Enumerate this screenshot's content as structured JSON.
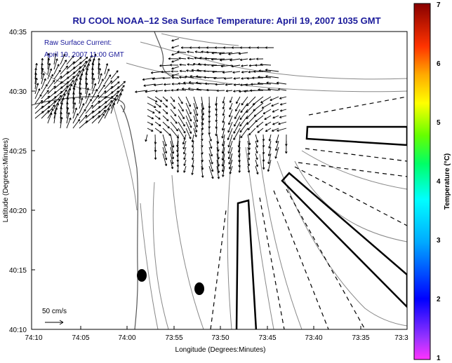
{
  "title": "RU COOL  NOAA–12  Sea Surface Temperature:  April 19, 2007 1035 GMT",
  "overlay": {
    "line1": "Raw Surface Current:",
    "line2": "April 19, 2007 11:00 GMT"
  },
  "scale_label": "50 cm/s",
  "x_axis": {
    "label": "Longitude (Degrees:Minutes)",
    "ticks": [
      "74:10",
      "74:05",
      "74:00",
      "73:55",
      "73:50",
      "73:45",
      "73:40",
      "73:35",
      "73:3"
    ]
  },
  "y_axis": {
    "label": "Latitude (Degrees:Minutes)",
    "ticks": [
      "40:35",
      "40:30",
      "40:25",
      "40:20",
      "40:15",
      "40:10"
    ]
  },
  "colorbar": {
    "label": "Temperature (°C)",
    "ticks": [
      "7",
      "6",
      "5",
      "4",
      "3",
      "2",
      "1"
    ]
  },
  "colors": {
    "title": "#1a1a9a",
    "frame": "#000000",
    "contour": "#888888"
  },
  "chart_data": {
    "type": "map",
    "x_range": [
      "74:10",
      "73:3"
    ],
    "y_range": [
      "40:10",
      "40:35"
    ],
    "colorbar_range": [
      1,
      7
    ]
  }
}
